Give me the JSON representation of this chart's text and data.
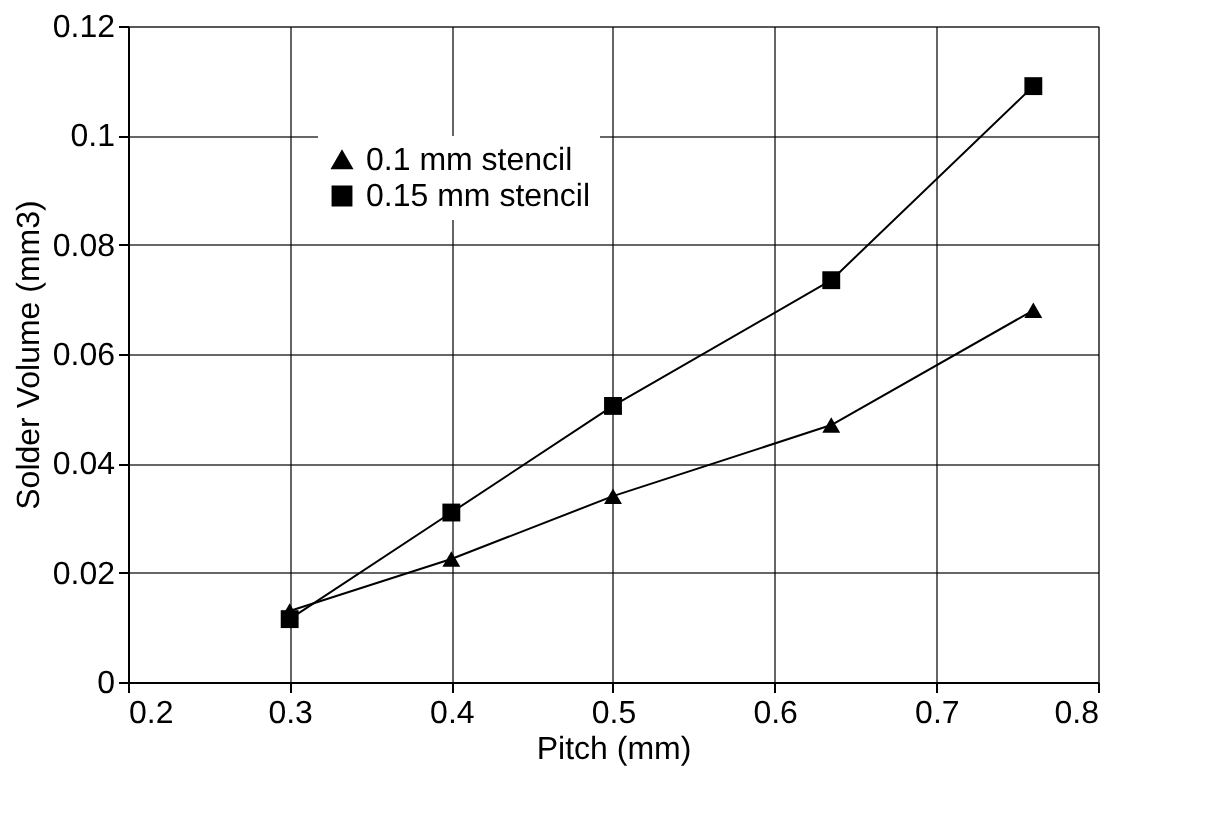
{
  "chart_data": {
    "type": "line",
    "xlabel": "Pitch (mm)",
    "ylabel": "Solder Volume (mm3)",
    "x": [
      0.3,
      0.4,
      0.5,
      0.635,
      0.76
    ],
    "series": [
      {
        "name": "0.1 mm stencil",
        "color": "#000000",
        "marker": "triangle",
        "values": [
          0.013,
          0.0225,
          0.034,
          0.047,
          0.068
        ]
      },
      {
        "name": "0.15 mm stencil",
        "color": "#000000",
        "marker": "square",
        "values": [
          0.0115,
          0.031,
          0.0505,
          0.0735,
          0.109
        ]
      }
    ],
    "xlim": [
      0.2,
      0.8
    ],
    "xticks": [
      0.2,
      0.3,
      0.4,
      0.5,
      0.6,
      0.7,
      0.8
    ],
    "ylim": [
      0,
      0.12
    ],
    "yticks": [
      0,
      0.02,
      0.04,
      0.06,
      0.08,
      0.1,
      0.12
    ],
    "grid": true,
    "legend": "top left",
    "line_style": "solid"
  }
}
